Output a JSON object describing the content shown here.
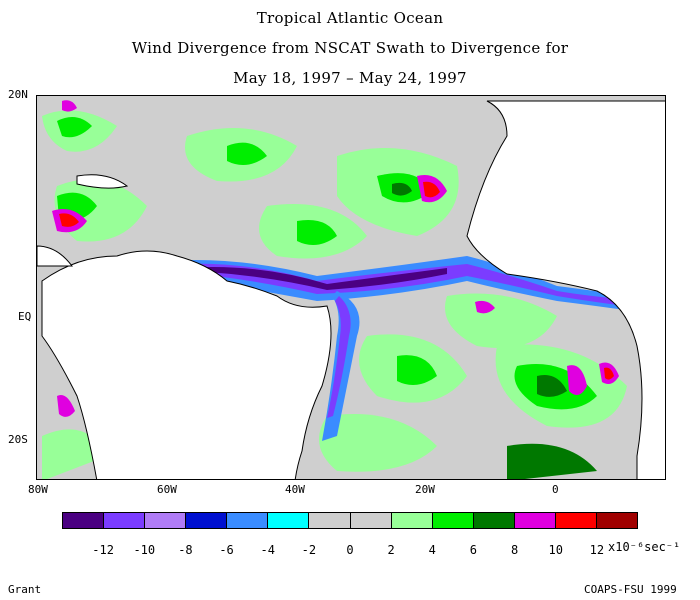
{
  "title": {
    "line1": "Tropical Atlantic Ocean",
    "line2": "Wind Divergence from NSCAT Swath to Divergence for",
    "line3": "May 18, 1997 – May 24, 1997"
  },
  "axes": {
    "y_ticks": [
      "20N",
      "EQ",
      "20S"
    ],
    "x_ticks": [
      "80W",
      "60W",
      "40W",
      "20W",
      "0"
    ]
  },
  "colorbar": {
    "colors": [
      "#4b0082",
      "#7b3cff",
      "#b07cf6",
      "#0010d0",
      "#3a8cff",
      "#00ffff",
      "#cfcfcf",
      "#cfcfcf",
      "#98ff98",
      "#00ee00",
      "#007800",
      "#e000e0",
      "#ff0000",
      "#a00000"
    ],
    "labels": [
      "-12",
      "-10",
      "-8",
      "-6",
      "-4",
      "-2",
      "0",
      "2",
      "4",
      "6",
      "8",
      "10",
      "12"
    ],
    "units": "x10⁻⁶sec⁻¹"
  },
  "footer": {
    "left": "Grant",
    "right": "COAPS-FSU 1999"
  },
  "palette": {
    "land": "#ffffff",
    "ocean_background": "#cfcfcf",
    "coast": "#000000"
  }
}
